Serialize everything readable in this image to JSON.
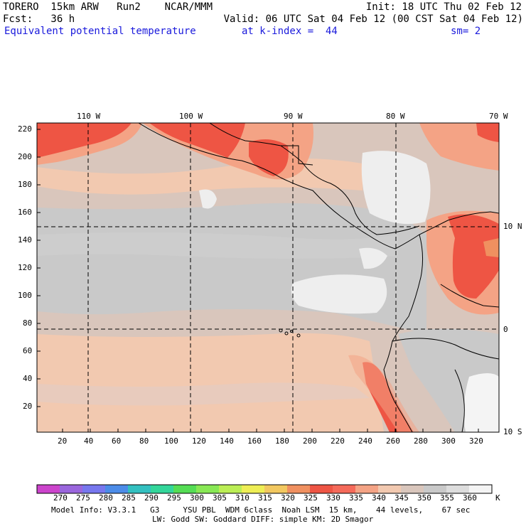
{
  "header": {
    "line1_left": "TORERO  15km ARW   Run2    NCAR/MMM",
    "line1_right": "Init: 18 UTC Thu 02 Feb 12",
    "line2_left": "Fcst:   36 h",
    "line2_right": "Valid: 06 UTC Sat 04 Feb 12 (00 CST Sat 04 Feb 12)",
    "field_name": "Equivalent potential temperature",
    "level": "at k-index =  44",
    "smoothing": "sm= 2"
  },
  "axes": {
    "top_lon_labels": [
      "110 W",
      "100 W",
      "90 W",
      "80 W",
      "70 W"
    ],
    "right_lat_labels": [
      "10 N",
      "0",
      "10 S"
    ],
    "y_grid_labels": [
      "220",
      "200",
      "180",
      "160",
      "140",
      "120",
      "100",
      "80",
      "60",
      "40",
      "20"
    ],
    "x_grid_labels": [
      "20",
      "40",
      "60",
      "80",
      "100",
      "120",
      "140",
      "160",
      "180",
      "200",
      "220",
      "240",
      "260",
      "280",
      "300",
      "320"
    ]
  },
  "legend": {
    "unit": "K",
    "values": [
      "270",
      "275",
      "280",
      "285",
      "290",
      "295",
      "300",
      "305",
      "310",
      "315",
      "320",
      "325",
      "330",
      "335",
      "340",
      "345",
      "350",
      "355",
      "360"
    ],
    "colors": [
      "#cc44cc",
      "#9a66dd",
      "#7777ee",
      "#4c8ce8",
      "#33c0c0",
      "#33d69a",
      "#55dd55",
      "#88e855",
      "#bbee55",
      "#eeee55",
      "#f2c860",
      "#f09060",
      "#ee5544",
      "#f56a5a",
      "#f4a385",
      "#f2c9b0",
      "#d9c6bc",
      "#c9c9c9",
      "#dddddd",
      "#f4f4f4"
    ]
  },
  "footer": {
    "line1": "Model Info: V3.3.1   G3     YSU PBL  WDM 6class  Noah LSM  15 km,    44 levels,    67 sec",
    "line2": "LW: Godd SW: Goddard DIFF: simple KM: 2D Smagor"
  }
}
